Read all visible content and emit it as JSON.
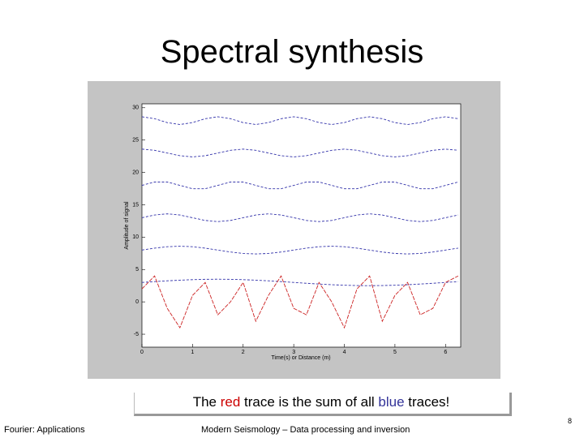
{
  "slide": {
    "title": "Spectral synthesis",
    "caption": [
      "The ",
      "red",
      " trace is the sum of all ",
      "blue",
      " traces!"
    ],
    "caption_colors": [
      "#000000",
      "#cc0000",
      "#000000",
      "#333399",
      "#000000"
    ],
    "footer_left": "Fourier: Applications",
    "footer_center": "Modern Seismology – Data processing and inversion",
    "page_number": "8"
  },
  "chart_data": {
    "type": "line",
    "x_label": "Time(s) or Distance (m)",
    "y_label": "Amplitude of signal",
    "xlim": [
      0,
      6.3
    ],
    "ylim": [
      -7,
      30.6
    ],
    "xticks": [
      0,
      1,
      2,
      3,
      4,
      5,
      6
    ],
    "yticks": [
      -5,
      0,
      5,
      10,
      15,
      20,
      25,
      30
    ],
    "x": [
      0,
      0.25,
      0.5,
      0.75,
      1,
      1.25,
      1.5,
      1.75,
      2,
      2.25,
      2.5,
      2.75,
      3,
      3.25,
      3.5,
      3.75,
      4,
      4.25,
      4.5,
      4.75,
      5,
      5.25,
      5.5,
      5.75,
      6,
      6.25
    ],
    "series": [
      {
        "color": "#3333aa",
        "dashed": true,
        "values": [
          3,
          3.13,
          3.25,
          3.35,
          3.43,
          3.48,
          3.5,
          3.48,
          3.43,
          3.35,
          3.25,
          3.13,
          3,
          2.87,
          2.75,
          2.65,
          2.57,
          2.52,
          2.5,
          2.52,
          2.57,
          2.65,
          2.75,
          2.87,
          3,
          3.13
        ]
      },
      {
        "color": "#3333aa",
        "dashed": true,
        "values": [
          8,
          8.3,
          8.52,
          8.6,
          8.52,
          8.3,
          8,
          7.7,
          7.48,
          7.4,
          7.48,
          7.7,
          8,
          8.3,
          8.52,
          8.6,
          8.52,
          8.3,
          8,
          7.7,
          7.48,
          7.4,
          7.48,
          7.7,
          8,
          8.3
        ]
      },
      {
        "color": "#3333aa",
        "dashed": true,
        "values": [
          13,
          13.42,
          13.6,
          13.42,
          13,
          12.58,
          12.4,
          12.58,
          13,
          13.42,
          13.6,
          13.42,
          13,
          12.58,
          12.4,
          12.58,
          13,
          13.42,
          13.6,
          13.42,
          13,
          12.58,
          12.4,
          12.58,
          13,
          13.42
        ]
      },
      {
        "color": "#3333aa",
        "dashed": true,
        "values": [
          18,
          18.52,
          18.52,
          18,
          17.48,
          17.48,
          18,
          18.52,
          18.52,
          18,
          17.48,
          17.48,
          18,
          18.52,
          18.52,
          18,
          17.48,
          17.48,
          18,
          18.52,
          18.52,
          18,
          17.48,
          17.48,
          18,
          18.52
        ]
      },
      {
        "color": "#3333aa",
        "dashed": true,
        "values": [
          23.6,
          23.42,
          23,
          22.58,
          22.4,
          22.58,
          23,
          23.42,
          23.6,
          23.42,
          23,
          22.58,
          22.4,
          22.58,
          23,
          23.42,
          23.6,
          23.42,
          23,
          22.58,
          22.4,
          22.58,
          23,
          23.42,
          23.6,
          23.42
        ]
      },
      {
        "color": "#3333aa",
        "dashed": true,
        "values": [
          28.6,
          28.3,
          27.7,
          27.4,
          27.7,
          28.3,
          28.6,
          28.3,
          27.7,
          27.4,
          27.7,
          28.3,
          28.6,
          28.3,
          27.7,
          27.4,
          27.7,
          28.3,
          28.6,
          28.3,
          27.7,
          27.4,
          27.7,
          28.3,
          28.6,
          28.3
        ]
      },
      {
        "color": "#cc2222",
        "dashed": false,
        "values": [
          2,
          4,
          -1,
          -4,
          1,
          3,
          -2,
          0,
          3,
          -3,
          1,
          4,
          -1,
          -2,
          3,
          0,
          -4,
          2,
          4,
          -3,
          1,
          3,
          -2,
          -1,
          3,
          4
        ]
      }
    ]
  }
}
